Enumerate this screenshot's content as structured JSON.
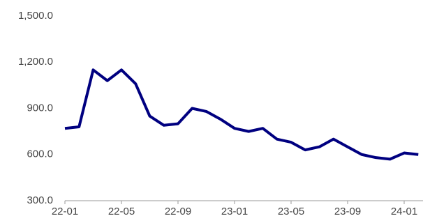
{
  "chart_data": {
    "type": "line",
    "categories": [
      "22-01",
      "22-02",
      "22-03",
      "22-04",
      "22-05",
      "22-06",
      "22-07",
      "22-08",
      "22-09",
      "22-10",
      "22-11",
      "22-12",
      "23-01",
      "23-02",
      "23-03",
      "23-04",
      "23-05",
      "23-06",
      "23-07",
      "23-08",
      "23-09",
      "23-10",
      "23-11",
      "23-12",
      "24-01",
      "24-02"
    ],
    "series": [
      {
        "color": "#000080",
        "values": [
          770,
          780,
          1150,
          1080,
          1150,
          1060,
          850,
          790,
          800,
          900,
          880,
          830,
          770,
          750,
          770,
          700,
          680,
          630,
          650,
          700,
          650,
          600,
          580,
          570,
          610,
          600
        ]
      }
    ],
    "xticks": [
      "22-01",
      "22-05",
      "22-09",
      "23-01",
      "23-05",
      "23-09",
      "24-01"
    ],
    "ylim": [
      300,
      1500
    ],
    "yticks": [
      {
        "value": 300,
        "label": "300.0"
      },
      {
        "value": 600,
        "label": "600.0"
      },
      {
        "value": 900,
        "label": "900.0"
      },
      {
        "value": 1200,
        "label": "1,200.0"
      },
      {
        "value": 1500,
        "label": "1,500.0"
      }
    ],
    "grid": false
  }
}
